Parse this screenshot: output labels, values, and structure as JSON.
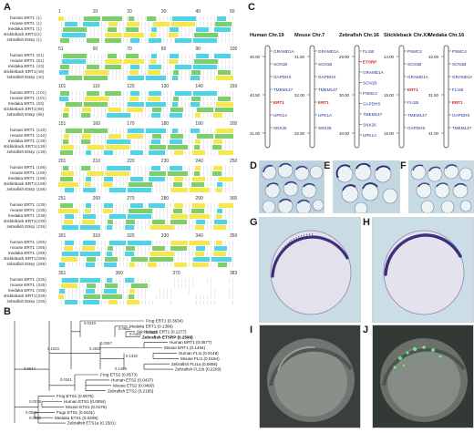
{
  "panels": {
    "a": "A",
    "b": "B",
    "c": "C",
    "d": "D",
    "e": "E",
    "f": "F",
    "g": "G",
    "h": "H",
    "i": "I",
    "j": "J"
  },
  "alignment": {
    "species": [
      "human ERT1",
      "mouse ERT1",
      "medaka ERT1",
      "stickleback ERT1",
      "zebrafish Etsrp"
    ],
    "blocks": [
      {
        "ruler": [
          "1",
          "10",
          "20",
          "30",
          "40",
          "50"
        ],
        "starts": [
          "(1)",
          "(1)",
          "(1)",
          "(1)",
          "(1)"
        ]
      },
      {
        "ruler": [
          "51",
          "60",
          "70",
          "80",
          "90",
          "100"
        ],
        "starts": [
          "(51)",
          "(51)",
          "(43)",
          "(48)",
          "(46)"
        ]
      },
      {
        "ruler": [
          "101",
          "110",
          "120",
          "130",
          "140",
          "150"
        ],
        "starts": [
          "(101)",
          "(101)",
          "(93)",
          "(98)",
          "(96)"
        ]
      },
      {
        "ruler": [
          "151",
          "160",
          "170",
          "180",
          "190",
          "200"
        ],
        "starts": [
          "(140)",
          "(140)",
          "(138)",
          "(139)",
          "(139)"
        ]
      },
      {
        "ruler": [
          "201",
          "210",
          "220",
          "230",
          "240",
          "250"
        ],
        "starts": [
          "(186)",
          "(186)",
          "(188)",
          "(189)",
          "(186)"
        ]
      },
      {
        "ruler": [
          "251",
          "260",
          "270",
          "280",
          "290",
          "300"
        ],
        "starts": [
          "(235)",
          "(235)",
          "(238)",
          "(239)",
          "(236)"
        ]
      },
      {
        "ruler": [
          "301",
          "310",
          "320",
          "330",
          "340",
          "350"
        ],
        "starts": [
          "(285)",
          "(285)",
          "(288)",
          "(289)",
          "(286)"
        ]
      },
      {
        "ruler": [
          "351",
          "360",
          "370",
          "383"
        ],
        "starts": [
          "(335)",
          "(335)",
          "(338)",
          "(339)",
          "(336)"
        ]
      }
    ]
  },
  "tree": {
    "leaves": [
      "Frog ERT1 (0.3634)",
      "Medaka ERT1 (0.1396)",
      "Stickleback ERT1 (0.1277)",
      "Zebrafish ETSRP (0.2599)",
      "Human ERT1 (0.0577)",
      "Mouse ERT1 (0.1494)",
      "Human FLI1 (0.0148)",
      "Mouse FLI1 (0.0184)",
      "Zebrafish FLI1a (0.0656)",
      "Zebrafish FLI1b (0.2209)",
      "Frog ETS2 (0.0573)",
      "Human ETS2 (0.0437)",
      "Mouse ETS2 (0.0460)",
      "Zebrafish ETS2 (0.2195)",
      "Frog ETS1 (0.0675)",
      "Human ETS1 (0.0054)",
      "Mouse ETS1 (0.0179)",
      "Fugu ETS1 (0.0101)",
      "Medaka ETS1 (0.0209)",
      "Zebrafish ETS1a (0.1501)"
    ],
    "branch_labels": [
      "0.0249",
      "0.0862",
      "0.0152",
      "0.0297",
      "0.1336",
      "0.1459",
      "0.2538",
      "0.0525",
      "0.0341",
      "0.0644",
      "0.1023",
      "0.0378",
      "0.0026",
      "0.0015"
    ]
  },
  "chromosomes": [
    {
      "title": "Human Chr.19",
      "ticks": [
        "40.00",
        "40.50",
        "41.00"
      ],
      "genes": [
        "GRAMD1A",
        "SCN1B",
        "GAPDHS",
        "TMEM147",
        "ERT1",
        "UPK1A",
        "SNX26"
      ]
    },
    {
      "title": "Mouse Chr.7",
      "ticks": [
        "31.50",
        "32.00",
        "32.50"
      ],
      "genes": [
        "GRAMD1A",
        "SCN1B",
        "GAPDHS",
        "TMEM147",
        "ERT1",
        "UPK1A",
        "SNX26"
      ]
    },
    {
      "title": "Zebrafish Chr.16",
      "ticks": [
        "29.00",
        "30.00",
        "40.00"
      ],
      "genes": [
        "FLI1B",
        "ETSRP",
        "GRAMD1A",
        "SCN1B",
        "PSMC4",
        "GAPDHS",
        "TMEM147",
        "SNX26",
        "UPK1A"
      ]
    },
    {
      "title": "Stickleback Chr.XX",
      "ticks": [
        "14.00",
        "15.00",
        "16.00"
      ],
      "genes": [
        "PSMC4",
        "SCN1B",
        "GRAMD1A",
        "ERT1",
        "FLI1B",
        "TMEM147",
        "GAPDHS"
      ]
    },
    {
      "title": "Medaka Chr.16",
      "ticks": [
        "32.00",
        "31.50",
        "31.00"
      ],
      "genes": [
        "PSMC4",
        "SCN1B",
        "GRAMD1A",
        "FLI1B",
        "ERT1",
        "GAPDHS",
        "TMEM147"
      ]
    }
  ],
  "colors": {
    "gene": "#1c2d9c",
    "highlight": "#d42020",
    "conserved_yellow": "#f6e84a",
    "similar_cyan": "#4fd3e6",
    "identical_green": "#7dcf6a"
  }
}
